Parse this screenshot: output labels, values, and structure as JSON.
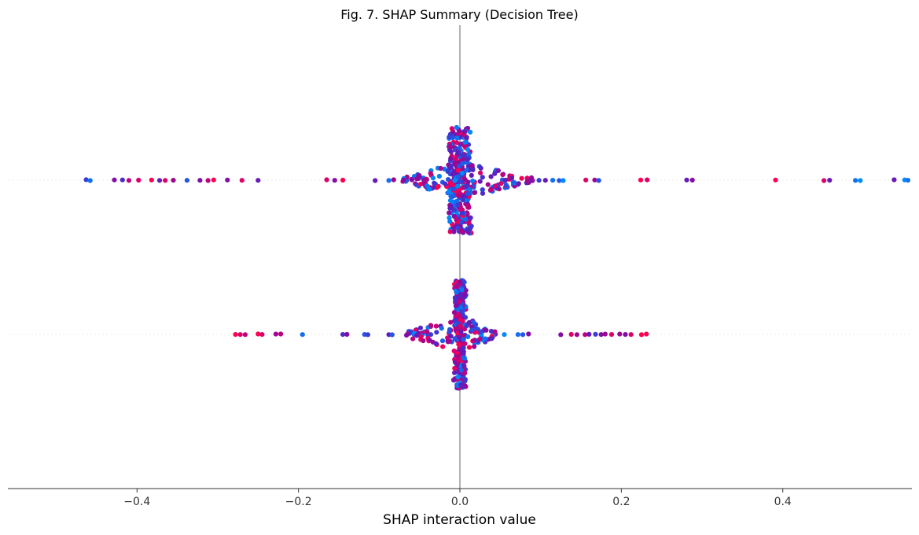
{
  "chart_data": {
    "type": "scatter",
    "subtype": "shap-beeswarm",
    "title": "Fig. 7. SHAP Summary (Decision Tree)",
    "xlabel": "SHAP interaction value",
    "ylabel": "",
    "xlim": [
      -0.56,
      0.56
    ],
    "xticks": [
      -0.4,
      -0.2,
      0.0,
      0.2,
      0.4
    ],
    "xtick_labels": [
      "−0.4",
      "−0.2",
      "0.0",
      "0.2",
      "0.4"
    ],
    "grid": false,
    "legend": "none",
    "colors": {
      "low": "#008bfb",
      "high": "#ff0052",
      "zero_line": "#999999",
      "row_line": "#eeeeee",
      "axis": "#333333"
    },
    "rows": [
      {
        "spread_points": [
          {
            "x": -0.463,
            "c": 0.3
          },
          {
            "x": -0.458,
            "c": 0.1
          },
          {
            "x": -0.428,
            "c": 0.6
          },
          {
            "x": -0.418,
            "c": 0.4
          },
          {
            "x": -0.41,
            "c": 0.8
          },
          {
            "x": -0.398,
            "c": 0.9
          },
          {
            "x": -0.382,
            "c": 1.0
          },
          {
            "x": -0.372,
            "c": 0.5
          },
          {
            "x": -0.365,
            "c": 0.9
          },
          {
            "x": -0.355,
            "c": 0.7
          },
          {
            "x": -0.338,
            "c": 0.2
          },
          {
            "x": -0.322,
            "c": 0.6
          },
          {
            "x": -0.312,
            "c": 0.8
          },
          {
            "x": -0.305,
            "c": 1.0
          },
          {
            "x": -0.288,
            "c": 0.6
          },
          {
            "x": -0.27,
            "c": 0.9
          },
          {
            "x": -0.25,
            "c": 0.5
          },
          {
            "x": -0.165,
            "c": 0.9
          },
          {
            "x": -0.155,
            "c": 0.6
          },
          {
            "x": -0.145,
            "c": 1.0
          },
          {
            "x": -0.105,
            "c": 0.5
          },
          {
            "x": -0.088,
            "c": 0.1
          },
          {
            "x": -0.082,
            "c": 0.7
          },
          {
            "x": -0.07,
            "c": 0.3
          },
          {
            "x": 0.09,
            "c": 0.6
          },
          {
            "x": 0.098,
            "c": 0.3
          },
          {
            "x": 0.106,
            "c": 0.5
          },
          {
            "x": 0.115,
            "c": 0.1
          },
          {
            "x": 0.123,
            "c": 0.2
          },
          {
            "x": 0.128,
            "c": 0.0
          },
          {
            "x": 0.156,
            "c": 0.9
          },
          {
            "x": 0.167,
            "c": 0.7
          },
          {
            "x": 0.172,
            "c": 0.2
          },
          {
            "x": 0.224,
            "c": 1.0
          },
          {
            "x": 0.232,
            "c": 0.9
          },
          {
            "x": 0.281,
            "c": 0.5
          },
          {
            "x": 0.288,
            "c": 0.6
          },
          {
            "x": 0.391,
            "c": 1.0
          },
          {
            "x": 0.451,
            "c": 0.9
          },
          {
            "x": 0.458,
            "c": 0.5
          },
          {
            "x": 0.49,
            "c": 0.1
          },
          {
            "x": 0.496,
            "c": 0.0
          },
          {
            "x": 0.538,
            "c": 0.5
          },
          {
            "x": 0.551,
            "c": 0.0
          },
          {
            "x": 0.555,
            "c": 0.1
          }
        ],
        "cluster": {
          "x_min": -0.07,
          "x_max": 0.09,
          "core_halfwidth": 0.013,
          "max_height": 0.9,
          "count": 420
        }
      },
      {
        "spread_points": [
          {
            "x": -0.278,
            "c": 1.0
          },
          {
            "x": -0.272,
            "c": 0.9
          },
          {
            "x": -0.266,
            "c": 0.8
          },
          {
            "x": -0.25,
            "c": 1.0
          },
          {
            "x": -0.245,
            "c": 0.9
          },
          {
            "x": -0.228,
            "c": 0.7
          },
          {
            "x": -0.222,
            "c": 0.8
          },
          {
            "x": -0.195,
            "c": 0.1
          },
          {
            "x": -0.145,
            "c": 0.4
          },
          {
            "x": -0.14,
            "c": 0.6
          },
          {
            "x": -0.118,
            "c": 0.2
          },
          {
            "x": -0.114,
            "c": 0.3
          },
          {
            "x": -0.088,
            "c": 0.5
          },
          {
            "x": -0.084,
            "c": 0.2
          },
          {
            "x": 0.044,
            "c": 0.6
          },
          {
            "x": 0.055,
            "c": 0.0
          },
          {
            "x": 0.072,
            "c": 0.1
          },
          {
            "x": 0.078,
            "c": 0.2
          },
          {
            "x": 0.085,
            "c": 0.6
          },
          {
            "x": 0.125,
            "c": 0.6
          },
          {
            "x": 0.138,
            "c": 0.9
          },
          {
            "x": 0.145,
            "c": 0.7
          },
          {
            "x": 0.155,
            "c": 0.8
          },
          {
            "x": 0.16,
            "c": 0.5
          },
          {
            "x": 0.168,
            "c": 0.3
          },
          {
            "x": 0.175,
            "c": 0.6
          },
          {
            "x": 0.18,
            "c": 0.7
          },
          {
            "x": 0.188,
            "c": 0.9
          },
          {
            "x": 0.198,
            "c": 0.7
          },
          {
            "x": 0.205,
            "c": 0.6
          },
          {
            "x": 0.212,
            "c": 0.9
          },
          {
            "x": 0.225,
            "c": 1.0
          },
          {
            "x": 0.231,
            "c": 1.0
          }
        ],
        "cluster": {
          "x_min": -0.065,
          "x_max": 0.045,
          "core_halfwidth": 0.006,
          "max_height": 0.92,
          "count": 380
        }
      }
    ]
  }
}
